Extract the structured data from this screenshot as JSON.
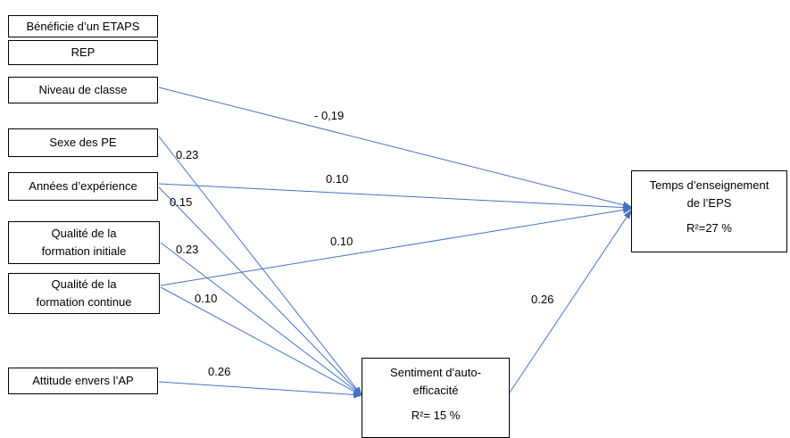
{
  "nodes": {
    "etaps": "Bénéficie d’un ETAPS",
    "rep": "REP",
    "niveau": "Niveau de classe",
    "sexe": "Sexe des PE",
    "annees": "Années d’expérience",
    "qfi_line1": "Qualité de la",
    "qfi_line2": "formation initiale",
    "qfc_line1": "Qualité de la",
    "qfc_line2": "formation continue",
    "attitude": "Attitude envers l’AP",
    "sentiment_line1": "Sentiment d’auto-",
    "sentiment_line2": "efficacité",
    "sentiment_r2": "R²= 15 %",
    "temps_line1": "Temps d’enseignement",
    "temps_line2": "de l’EPS",
    "temps_r2": "R²=27 %"
  },
  "coefficients": {
    "niveau_temps": "- 0,19",
    "sexe_sentiment": "0.23",
    "annees_temps": "0.10",
    "annees_sentiment": "0.15",
    "qfi_sentiment": "0.23",
    "qfc_temps": "0.10",
    "qfc_sentiment": "0.10",
    "attitude_sentiment": "0.26",
    "sentiment_temps": "0.26"
  },
  "colors": {
    "arrow": "#4472c4",
    "box_border": "#000000"
  }
}
